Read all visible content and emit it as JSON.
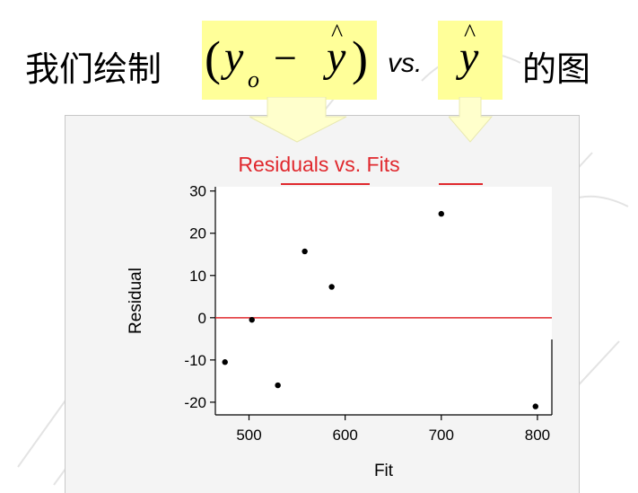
{
  "header": {
    "prefix": "我们绘制",
    "suffix": "的图",
    "formula": {
      "open_paren": "(",
      "y": "y",
      "sub": "o",
      "minus": "−",
      "yhat_var": "y",
      "hat": "^",
      "close_paren": ")"
    },
    "vs": "vs.",
    "yhat": {
      "var": "y",
      "hat": "^"
    }
  },
  "colors": {
    "highlight": "#ffff99",
    "title_red": "#e0282d",
    "zero_line": "#e0282d",
    "arrow_fill": "#ffffcc"
  },
  "chart_data": {
    "type": "scatter",
    "title": "Residuals vs. Fits",
    "xlabel": "Fit",
    "ylabel": "Residual",
    "xlim": [
      465,
      815
    ],
    "ylim": [
      -23,
      31
    ],
    "xticks": [
      500,
      600,
      700,
      800
    ],
    "yticks": [
      -20,
      -10,
      0,
      10,
      20,
      30
    ],
    "reference_line_y": 0,
    "grid": false,
    "points": [
      {
        "x": 475,
        "y": -10.5
      },
      {
        "x": 503,
        "y": -0.5
      },
      {
        "x": 530,
        "y": -16
      },
      {
        "x": 558,
        "y": 15.7
      },
      {
        "x": 586,
        "y": 7.3
      },
      {
        "x": 700,
        "y": 24.6
      },
      {
        "x": 798,
        "y": -21
      }
    ]
  }
}
